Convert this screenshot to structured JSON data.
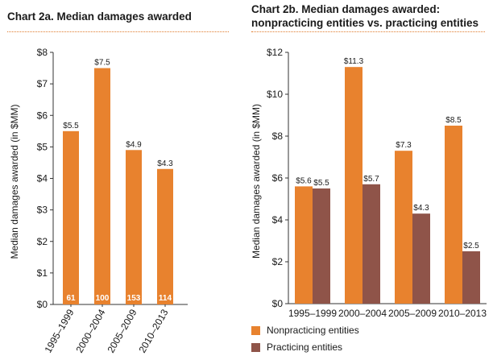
{
  "colors": {
    "orange": "#e8822e",
    "brown": "#8f5449",
    "dots": "#e07a2c"
  },
  "chart_data": [
    {
      "type": "bar",
      "title": "Chart 2a. Median damages awarded",
      "ylabel": "Median damages awarded (in $MM)",
      "xlabel": "",
      "ylim": [
        0,
        8
      ],
      "yticks": [
        "$0",
        "$1",
        "$2",
        "$3",
        "$4",
        "$5",
        "$6",
        "$7",
        "$8"
      ],
      "categories": [
        "1995–1999",
        "2000–2004",
        "2005–2009",
        "2010–2013"
      ],
      "values": [
        5.5,
        7.5,
        4.9,
        4.3
      ],
      "value_labels": [
        "$5.5",
        "$7.5",
        "$4.9",
        "$4.3"
      ],
      "counts": [
        "61",
        "100",
        "153",
        "114"
      ]
    },
    {
      "type": "bar",
      "title": "Chart 2b. Median damages awarded: nonpracticing entities vs. practicing entities",
      "title_lines": [
        "Chart 2b. Median damages awarded:",
        "nonpracticing entities vs. practicing entities"
      ],
      "ylabel": "Median damages awarded (in $MM)",
      "xlabel": "",
      "ylim": [
        0,
        12
      ],
      "yticks": [
        "$0",
        "$2",
        "$4",
        "$6",
        "$8",
        "$10",
        "$12"
      ],
      "categories": [
        "1995–1999",
        "2000–2004",
        "2005–2009",
        "2010–2013"
      ],
      "series": [
        {
          "name": "Nonpracticing entities",
          "values": [
            5.6,
            11.3,
            7.3,
            8.5
          ],
          "labels": [
            "$5.6",
            "$11.3",
            "$7.3",
            "$8.5"
          ]
        },
        {
          "name": "Practicing entities",
          "values": [
            5.5,
            5.7,
            4.3,
            2.5
          ],
          "labels": [
            "$5.5",
            "$5.7",
            "$4.3",
            "$2.5"
          ]
        }
      ],
      "legend_position": "bottom-left"
    }
  ]
}
